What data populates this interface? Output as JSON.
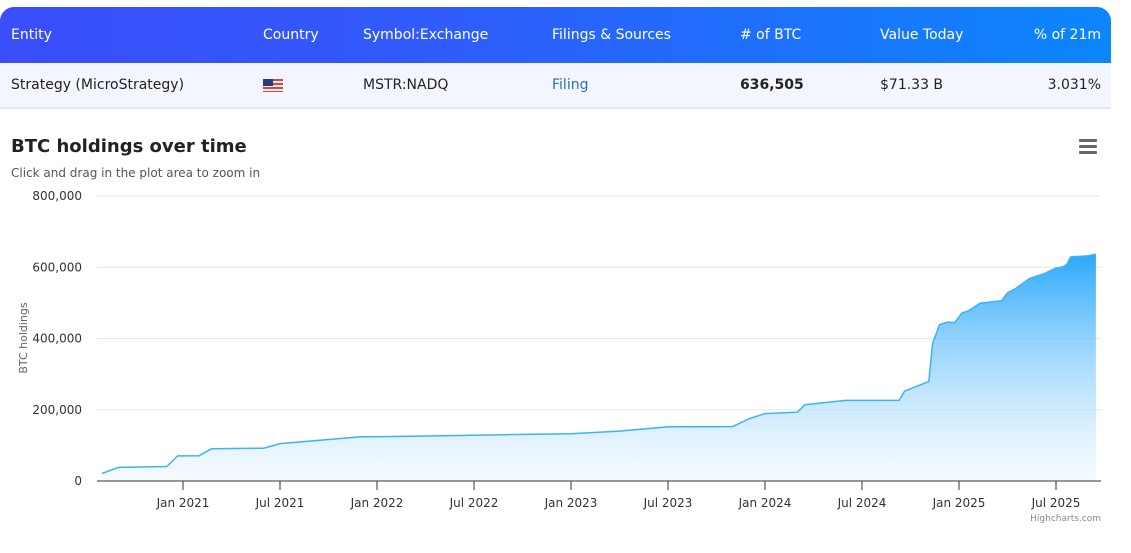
{
  "table": {
    "headers": {
      "entity": "Entity",
      "country": "Country",
      "symbol": "Symbol:Exchange",
      "filings": "Filings & Sources",
      "btc": "# of BTC",
      "value": "Value Today",
      "pct": "% of 21m"
    },
    "row": {
      "entity": "Strategy (MicroStrategy)",
      "country_flag": "us-flag-icon",
      "symbol": "MSTR:NADQ",
      "filings": "Filing",
      "btc": "636,505",
      "value": "$71.33 B",
      "pct": "3.031%"
    }
  },
  "chart": {
    "title": "BTC holdings over time",
    "subtitle": "Click and drag in the plot area to zoom in",
    "menu_icon": "hamburger-menu-icon",
    "credits": "Highcharts.com"
  },
  "chart_data": {
    "type": "area",
    "title": "BTC holdings over time",
    "subtitle": "Click and drag in the plot area to zoom in",
    "xlabel": "",
    "ylabel": "BTC holdings",
    "ylim": [
      0,
      800000
    ],
    "yticks": [
      0,
      200000,
      400000,
      600000,
      800000
    ],
    "ytick_labels": [
      "0",
      "200,000",
      "400,000",
      "600,000",
      "800,000"
    ],
    "xticks": [
      "Jan 2021",
      "Jul 2021",
      "Jan 2022",
      "Jul 2022",
      "Jan 2023",
      "Jul 2023",
      "Jan 2024",
      "Jul 2024",
      "Jan 2025",
      "Jul 2025"
    ],
    "grid": true,
    "legend": false,
    "series": [
      {
        "name": "BTC holdings",
        "color": "#3fb1f5",
        "points": [
          [
            "2020-08",
            21454
          ],
          [
            "2020-09",
            38250
          ],
          [
            "2020-12",
            40824
          ],
          [
            "2020-12-21",
            70470
          ],
          [
            "2021-02",
            71079
          ],
          [
            "2021-02-24",
            90531
          ],
          [
            "2021-06",
            92079
          ],
          [
            "2021-07",
            105085
          ],
          [
            "2021-12",
            124391
          ],
          [
            "2022-02",
            125051
          ],
          [
            "2022-09",
            130000
          ],
          [
            "2023-01",
            132500
          ],
          [
            "2023-04",
            140000
          ],
          [
            "2023-07",
            152333
          ],
          [
            "2023-11",
            152800
          ],
          [
            "2023-12",
            174530
          ],
          [
            "2024-01",
            189150
          ],
          [
            "2024-03-01",
            193000
          ],
          [
            "2024-03-15",
            214246
          ],
          [
            "2024-06",
            226331
          ],
          [
            "2024-09-10",
            226500
          ],
          [
            "2024-09-20",
            252220
          ],
          [
            "2024-11-05",
            279420
          ],
          [
            "2024-11-12",
            386700
          ],
          [
            "2024-11-25",
            439000
          ],
          [
            "2024-12-10",
            446400
          ],
          [
            "2024-12-23",
            444262
          ],
          [
            "2025-01-06",
            471107
          ],
          [
            "2025-01-20",
            478740
          ],
          [
            "2025-02-10",
            499096
          ],
          [
            "2025-03-20",
            506137
          ],
          [
            "2025-03-31",
            528185
          ],
          [
            "2025-04-14",
            538200
          ],
          [
            "2025-04-28",
            553555
          ],
          [
            "2025-05-12",
            568840
          ],
          [
            "2025-06-09",
            582000
          ],
          [
            "2025-06-30",
            597325
          ],
          [
            "2025-07-14",
            601550
          ],
          [
            "2025-07-21",
            607770
          ],
          [
            "2025-07-28",
            628791
          ],
          [
            "2025-08-31",
            632457
          ],
          [
            "2025-09-15",
            636505
          ]
        ]
      }
    ]
  }
}
